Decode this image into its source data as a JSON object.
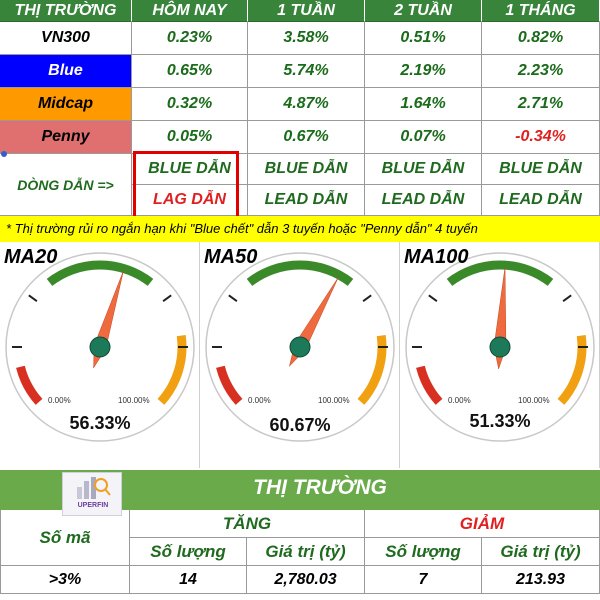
{
  "header": {
    "col_label": "THỊ TRƯỜNG",
    "periods": [
      "HÔM NAY",
      "1 TUẦN",
      "2 TUẦN",
      "1 THÁNG"
    ]
  },
  "rows": [
    {
      "name": "VN300",
      "values": [
        "0.23%",
        "3.58%",
        "0.51%",
        "0.82%"
      ],
      "bg": "#ffffff",
      "color": "#000000"
    },
    {
      "name": "Blue",
      "values": [
        "0.65%",
        "5.74%",
        "2.19%",
        "2.23%"
      ],
      "bg": "#0000ff",
      "color": "#ffffff"
    },
    {
      "name": "Midcap",
      "values": [
        "0.32%",
        "4.87%",
        "1.64%",
        "2.71%"
      ],
      "bg": "#ff9900",
      "color": "#000000"
    },
    {
      "name": "Penny",
      "values": [
        "0.05%",
        "0.67%",
        "0.07%",
        "-0.34%"
      ],
      "bg": "#e07070",
      "color": "#000000"
    }
  ],
  "dong_dan": {
    "label": "DÒNG DẪN =>",
    "blue_row": [
      "BLUE DẪN",
      "BLUE DẪN",
      "BLUE DẪN",
      "BLUE DẪN"
    ],
    "lead_row": [
      "LAG DẪN",
      "LEAD DẪN",
      "LEAD DẪN",
      "LEAD DẪN"
    ]
  },
  "note": "* Thị trường rủi ro ngắn hạn khi \"Blue chết\" dẫn 3 tuyến hoặc \"Penny dẫn\" 4 tuyến",
  "gauges": [
    {
      "title": "MA20",
      "value": 56.33,
      "label": "56.33%",
      "min_label": "0.00%",
      "max_label": "100.00%"
    },
    {
      "title": "MA50",
      "value": 60.67,
      "label": "60.67%",
      "min_label": "0.00%",
      "max_label": "100.00%"
    },
    {
      "title": "MA100",
      "value": 51.33,
      "label": "51.33%",
      "min_label": "0.00%",
      "max_label": "100.00%"
    }
  ],
  "thi_truong": {
    "title": "THỊ TRƯỜNG",
    "logo_text": "UPERFIN",
    "so_ma": "Số mã",
    "tang": "TĂNG",
    "giam": "GIẢM",
    "so_luong": "Số lượng",
    "gia_tri": "Giá trị (tỷ)",
    "rows": [
      {
        "label": ">3%",
        "tang_sl": "14",
        "tang_gt": "2,780.03",
        "giam_sl": "7",
        "giam_gt": "213.93"
      }
    ]
  },
  "colors": {
    "header_green": "#38843b",
    "value_green": "#1a6b1a",
    "negative_red": "#e02020",
    "note_yellow": "#ffff00",
    "gauge_green": "#3a8a2a",
    "gauge_orange": "#f0a010",
    "gauge_red": "#d83020",
    "needle": "#f06a40",
    "hub": "#1c7a5a"
  }
}
